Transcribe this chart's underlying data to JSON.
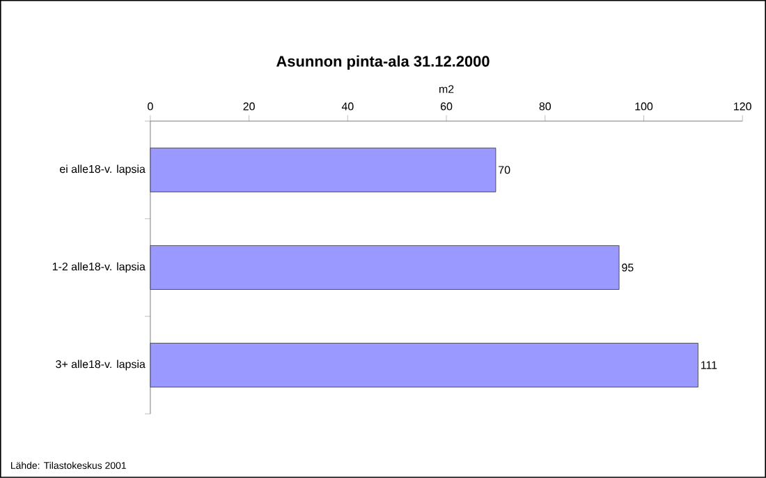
{
  "chart_data": {
    "type": "bar",
    "orientation": "horizontal",
    "title": "Asunnon pinta-ala 31.12.2000",
    "xlabel": "m2",
    "categories": [
      "ei alle18-v. lapsia",
      "1-2 alle18-v. lapsia",
      "3+ alle18-v. lapsia"
    ],
    "values": [
      70,
      95,
      111
    ],
    "color": "#9999ff",
    "data_labels": true,
    "xlim": [
      0,
      120
    ],
    "xticks": [
      0,
      20,
      40,
      60,
      80,
      100,
      120
    ],
    "annotations": [
      "Lähde: Tilastokeskus 2001"
    ]
  }
}
